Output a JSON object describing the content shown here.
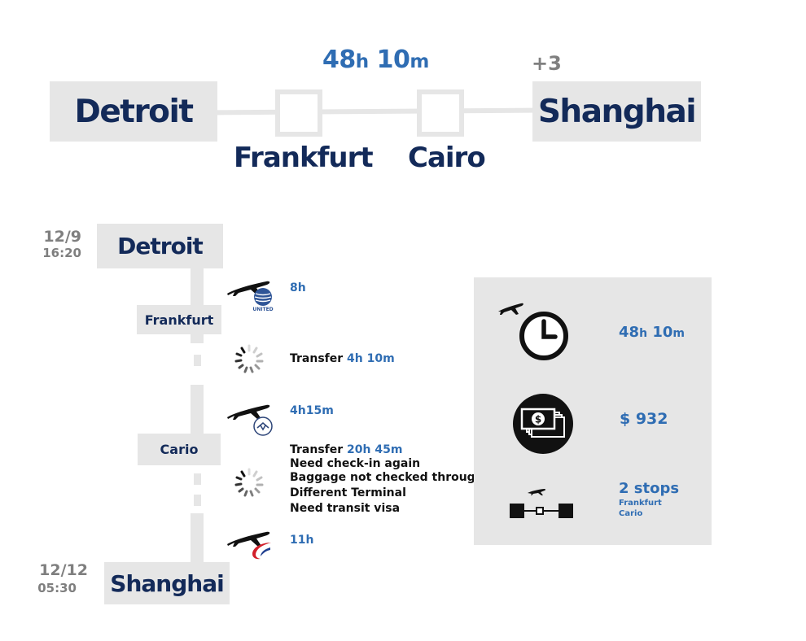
{
  "route": {
    "origin": "Detroit",
    "destination": "Shanghai",
    "stops": [
      "Frankfurt",
      "Cairo"
    ],
    "total_duration": {
      "hours": "48",
      "hours_unit": "h",
      "minutes": "10",
      "minutes_unit": "m"
    },
    "day_offset": "+3"
  },
  "timeline": {
    "departure": {
      "city": "Detroit",
      "date": "12/9",
      "time": "16:20"
    },
    "arrival": {
      "city": "Shanghai",
      "date": "12/12",
      "time": "05:30"
    },
    "stop1": {
      "city": "Frankfurt"
    },
    "stop2": {
      "city": "Cario"
    },
    "legs": [
      {
        "airline_icon": "united-logo-icon",
        "duration": "8h"
      },
      {
        "airline_icon": "lufthansa-logo-icon",
        "duration": "4h15m"
      },
      {
        "airline_icon": "china-eastern-logo-icon",
        "duration": "11h"
      }
    ],
    "transfers": [
      {
        "label": "Transfer ",
        "duration": "4h 10m",
        "notes": []
      },
      {
        "label": "Transfer ",
        "duration": "20h 45m",
        "notes": [
          "Need check-in again",
          "Baggage not checked through",
          "Different Terminal",
          "Need transit visa"
        ]
      }
    ]
  },
  "summary": {
    "duration": {
      "hours": "48",
      "hours_unit": "h",
      "minutes": "10",
      "minutes_unit": "m"
    },
    "price": "$ 932",
    "stops": {
      "count_label": "2 stops",
      "cities": [
        "Frankfurt",
        "Cario"
      ]
    }
  },
  "colors": {
    "navy": "#132a59",
    "blue": "#2f6db3",
    "grey": "#7f7f7f",
    "panel": "#e6e6e6",
    "united": "#2f5597",
    "lufthansa": "#2c4478",
    "china_eastern_red": "#d21f2a",
    "china_eastern_blue": "#1f3f8f"
  }
}
